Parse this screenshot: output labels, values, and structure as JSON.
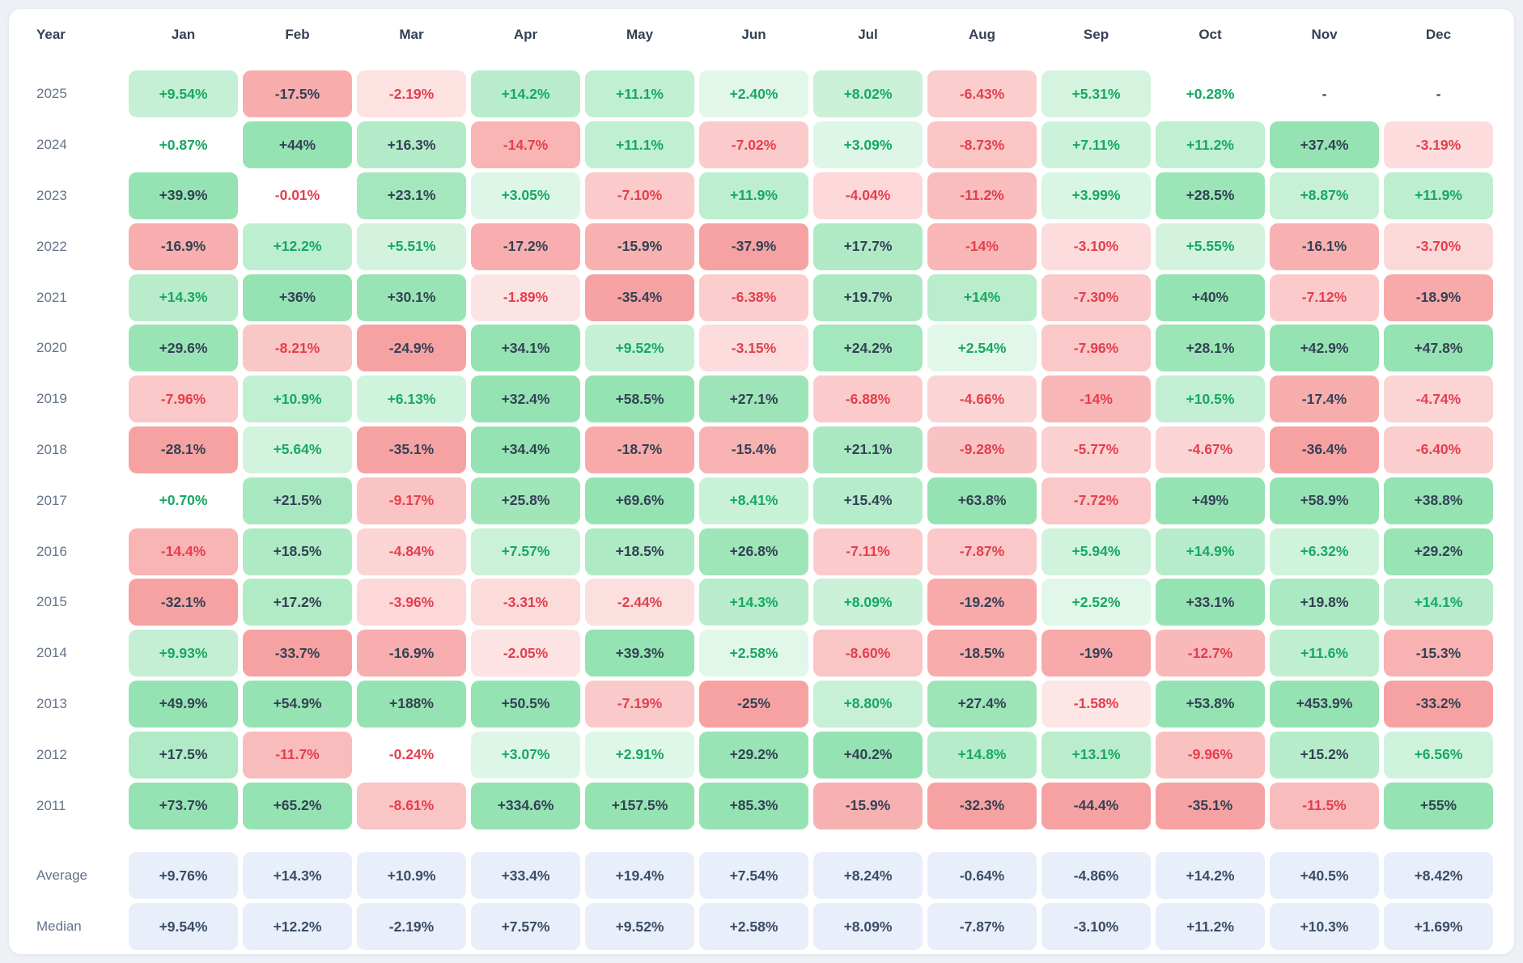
{
  "page": {
    "background": "#edf0f4",
    "card_background": "#ffffff",
    "card_border": "#e5eaf0"
  },
  "colors": {
    "positive_base": "#22c55e",
    "negative_base": "#ef4444",
    "positive_text": "#16a862",
    "negative_text": "#e43e4d",
    "strong_text": "#334155",
    "header_text": "#334155",
    "year_text": "#64748b",
    "summary_bg": "#e8eefa",
    "summary_text": "#3c4c64",
    "summary_label_text": "#64748b",
    "empty_text": "#334155"
  },
  "table": {
    "columns": [
      "Year",
      "Jan",
      "Feb",
      "Mar",
      "Apr",
      "May",
      "Jun",
      "Jul",
      "Aug",
      "Sep",
      "Oct",
      "Nov",
      "Dec"
    ],
    "rows": [
      {
        "year": "2025",
        "values": [
          "+9.54%",
          "-17.5%",
          "-2.19%",
          "+14.2%",
          "+11.1%",
          "+2.40%",
          "+8.02%",
          "-6.43%",
          "+5.31%",
          "+0.28%",
          "-",
          "-"
        ]
      },
      {
        "year": "2024",
        "values": [
          "+0.87%",
          "+44%",
          "+16.3%",
          "-14.7%",
          "+11.1%",
          "-7.02%",
          "+3.09%",
          "-8.73%",
          "+7.11%",
          "+11.2%",
          "+37.4%",
          "-3.19%"
        ]
      },
      {
        "year": "2023",
        "values": [
          "+39.9%",
          "-0.01%",
          "+23.1%",
          "+3.05%",
          "-7.10%",
          "+11.9%",
          "-4.04%",
          "-11.2%",
          "+3.99%",
          "+28.5%",
          "+8.87%",
          "+11.9%"
        ]
      },
      {
        "year": "2022",
        "values": [
          "-16.9%",
          "+12.2%",
          "+5.51%",
          "-17.2%",
          "-15.9%",
          "-37.9%",
          "+17.7%",
          "-14%",
          "-3.10%",
          "+5.55%",
          "-16.1%",
          "-3.70%"
        ]
      },
      {
        "year": "2021",
        "values": [
          "+14.3%",
          "+36%",
          "+30.1%",
          "-1.89%",
          "-35.4%",
          "-6.38%",
          "+19.7%",
          "+14%",
          "-7.30%",
          "+40%",
          "-7.12%",
          "-18.9%"
        ]
      },
      {
        "year": "2020",
        "values": [
          "+29.6%",
          "-8.21%",
          "-24.9%",
          "+34.1%",
          "+9.52%",
          "-3.15%",
          "+24.2%",
          "+2.54%",
          "-7.96%",
          "+28.1%",
          "+42.9%",
          "+47.8%"
        ]
      },
      {
        "year": "2019",
        "values": [
          "-7.96%",
          "+10.9%",
          "+6.13%",
          "+32.4%",
          "+58.5%",
          "+27.1%",
          "-6.88%",
          "-4.66%",
          "-14%",
          "+10.5%",
          "-17.4%",
          "-4.74%"
        ]
      },
      {
        "year": "2018",
        "values": [
          "-28.1%",
          "+5.64%",
          "-35.1%",
          "+34.4%",
          "-18.7%",
          "-15.4%",
          "+21.1%",
          "-9.28%",
          "-5.77%",
          "-4.67%",
          "-36.4%",
          "-6.40%"
        ]
      },
      {
        "year": "2017",
        "values": [
          "+0.70%",
          "+21.5%",
          "-9.17%",
          "+25.8%",
          "+69.6%",
          "+8.41%",
          "+15.4%",
          "+63.8%",
          "-7.72%",
          "+49%",
          "+58.9%",
          "+38.8%"
        ]
      },
      {
        "year": "2016",
        "values": [
          "-14.4%",
          "+18.5%",
          "-4.84%",
          "+7.57%",
          "+18.5%",
          "+26.8%",
          "-7.11%",
          "-7.87%",
          "+5.94%",
          "+14.9%",
          "+6.32%",
          "+29.2%"
        ]
      },
      {
        "year": "2015",
        "values": [
          "-32.1%",
          "+17.2%",
          "-3.96%",
          "-3.31%",
          "-2.44%",
          "+14.3%",
          "+8.09%",
          "-19.2%",
          "+2.52%",
          "+33.1%",
          "+19.8%",
          "+14.1%"
        ]
      },
      {
        "year": "2014",
        "values": [
          "+9.93%",
          "-33.7%",
          "-16.9%",
          "-2.05%",
          "+39.3%",
          "+2.58%",
          "-8.60%",
          "-18.5%",
          "-19%",
          "-12.7%",
          "+11.6%",
          "-15.3%"
        ]
      },
      {
        "year": "2013",
        "values": [
          "+49.9%",
          "+54.9%",
          "+188%",
          "+50.5%",
          "-7.19%",
          "-25%",
          "+8.80%",
          "+27.4%",
          "-1.58%",
          "+53.8%",
          "+453.9%",
          "-33.2%"
        ]
      },
      {
        "year": "2012",
        "values": [
          "+17.5%",
          "-11.7%",
          "-0.24%",
          "+3.07%",
          "+2.91%",
          "+29.2%",
          "+40.2%",
          "+14.8%",
          "+13.1%",
          "-9.96%",
          "+15.2%",
          "+6.56%"
        ]
      },
      {
        "year": "2011",
        "values": [
          "+73.7%",
          "+65.2%",
          "-8.61%",
          "+334.6%",
          "+157.5%",
          "+85.3%",
          "-15.9%",
          "-32.3%",
          "-44.4%",
          "-35.1%",
          "-11.5%",
          "+55%"
        ]
      }
    ],
    "summary_rows": [
      {
        "label": "Average",
        "values": [
          "+9.76%",
          "+14.3%",
          "+10.9%",
          "+33.4%",
          "+19.4%",
          "+7.54%",
          "+8.24%",
          "-0.64%",
          "-4.86%",
          "+14.2%",
          "+40.5%",
          "+8.42%"
        ]
      },
      {
        "label": "Median",
        "values": [
          "+9.54%",
          "+12.2%",
          "-2.19%",
          "+7.57%",
          "+9.52%",
          "+2.58%",
          "+8.09%",
          "-7.87%",
          "-3.10%",
          "+11.2%",
          "+10.3%",
          "+1.69%"
        ]
      }
    ]
  },
  "chart_data": {
    "type": "heatmap",
    "title": "Monthly returns heatmap by year",
    "unit": "%",
    "x_labels": [
      "Jan",
      "Feb",
      "Mar",
      "Apr",
      "May",
      "Jun",
      "Jul",
      "Aug",
      "Sep",
      "Oct",
      "Nov",
      "Dec"
    ],
    "y_labels": [
      "2025",
      "2024",
      "2023",
      "2022",
      "2021",
      "2020",
      "2019",
      "2018",
      "2017",
      "2016",
      "2015",
      "2014",
      "2013",
      "2012",
      "2011"
    ],
    "values": [
      [
        9.54,
        -17.5,
        -2.19,
        14.2,
        11.1,
        2.4,
        8.02,
        -6.43,
        5.31,
        0.28,
        null,
        null
      ],
      [
        0.87,
        44,
        16.3,
        -14.7,
        11.1,
        -7.02,
        3.09,
        -8.73,
        7.11,
        11.2,
        37.4,
        -3.19
      ],
      [
        39.9,
        -0.01,
        23.1,
        3.05,
        -7.1,
        11.9,
        -4.04,
        -11.2,
        3.99,
        28.5,
        8.87,
        11.9
      ],
      [
        -16.9,
        12.2,
        5.51,
        -17.2,
        -15.9,
        -37.9,
        17.7,
        -14,
        -3.1,
        5.55,
        -16.1,
        -3.7
      ],
      [
        14.3,
        36,
        30.1,
        -1.89,
        -35.4,
        -6.38,
        19.7,
        14,
        -7.3,
        40,
        -7.12,
        -18.9
      ],
      [
        29.6,
        -8.21,
        -24.9,
        34.1,
        9.52,
        -3.15,
        24.2,
        2.54,
        -7.96,
        28.1,
        42.9,
        47.8
      ],
      [
        -7.96,
        10.9,
        6.13,
        32.4,
        58.5,
        27.1,
        -6.88,
        -4.66,
        -14,
        10.5,
        -17.4,
        -4.74
      ],
      [
        -28.1,
        5.64,
        -35.1,
        34.4,
        -18.7,
        -15.4,
        21.1,
        -9.28,
        -5.77,
        -4.67,
        -36.4,
        -6.4
      ],
      [
        0.7,
        21.5,
        -9.17,
        25.8,
        69.6,
        8.41,
        15.4,
        63.8,
        -7.72,
        49,
        58.9,
        38.8
      ],
      [
        -14.4,
        18.5,
        -4.84,
        7.57,
        18.5,
        26.8,
        -7.11,
        -7.87,
        5.94,
        14.9,
        6.32,
        29.2
      ],
      [
        -32.1,
        17.2,
        -3.96,
        -3.31,
        -2.44,
        14.3,
        8.09,
        -19.2,
        2.52,
        33.1,
        19.8,
        14.1
      ],
      [
        9.93,
        -33.7,
        -16.9,
        -2.05,
        39.3,
        2.58,
        -8.6,
        -18.5,
        -19,
        -12.7,
        11.6,
        -15.3
      ],
      [
        49.9,
        54.9,
        188,
        50.5,
        -7.19,
        -25,
        8.8,
        27.4,
        -1.58,
        53.8,
        453.9,
        -33.2
      ],
      [
        17.5,
        -11.7,
        -0.24,
        3.07,
        2.91,
        29.2,
        40.2,
        14.8,
        13.1,
        -9.96,
        15.2,
        6.56
      ],
      [
        73.7,
        65.2,
        -8.61,
        334.6,
        157.5,
        85.3,
        -15.9,
        -32.3,
        -44.4,
        -35.1,
        -11.5,
        55
      ]
    ],
    "summary": {
      "Average": [
        9.76,
        14.3,
        10.9,
        33.4,
        19.4,
        7.54,
        8.24,
        -0.64,
        -4.86,
        14.2,
        40.5,
        8.42
      ],
      "Median": [
        9.54,
        12.2,
        -2.19,
        7.57,
        9.52,
        2.58,
        8.09,
        -7.87,
        -3.1,
        11.2,
        10.3,
        1.69
      ]
    },
    "legend_position": "none",
    "grid": false
  }
}
